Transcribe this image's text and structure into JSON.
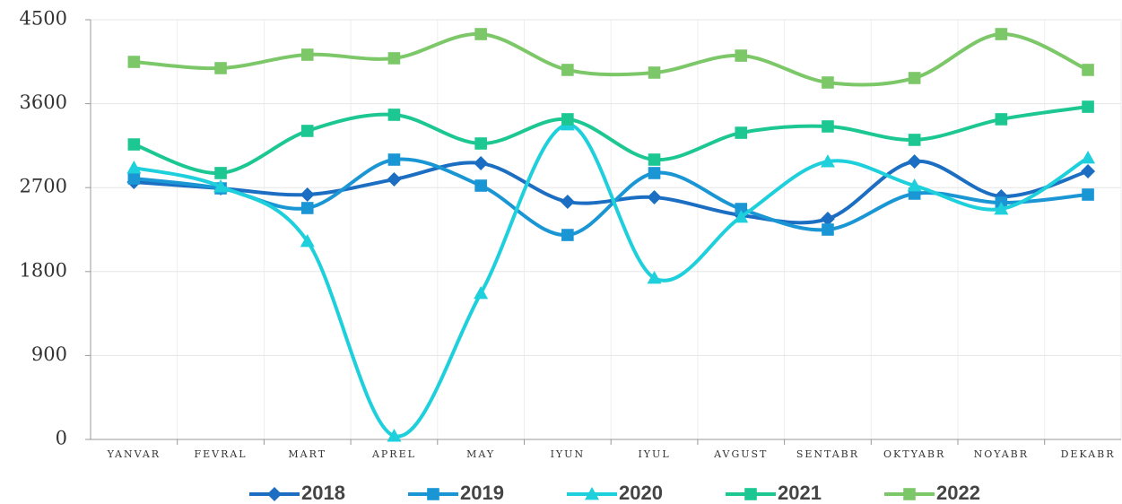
{
  "chart_data": {
    "type": "line",
    "categories": [
      "YANVAR",
      "FEVRAL",
      "MART",
      "APREL",
      "MAY",
      "IYUN",
      "IYUL",
      "AVGUST",
      "SENTABR",
      "OKTYABR",
      "NOYABR",
      "DEKABR"
    ],
    "ylim": [
      0,
      4500
    ],
    "yticks": [
      0,
      900,
      1800,
      2700,
      3600,
      4500
    ],
    "grid": true,
    "smooth": true,
    "legend": "bottom",
    "series": [
      {
        "name": "2018",
        "color": "#1b6ec2",
        "marker": "diamond",
        "values": [
          2760,
          2692,
          2625,
          2788,
          2961,
          2548,
          2596,
          2404,
          2365,
          2980,
          2606,
          2875
        ]
      },
      {
        "name": "2019",
        "color": "#1a96d4",
        "marker": "square",
        "values": [
          2798,
          2692,
          2481,
          3000,
          2721,
          2192,
          2856,
          2471,
          2250,
          2635,
          2538,
          2625
        ]
      },
      {
        "name": "2020",
        "color": "#1ecfdc",
        "marker": "triangle",
        "values": [
          2913,
          2711,
          2125,
          38,
          1567,
          3375,
          1731,
          2385,
          2980,
          2721,
          2471,
          3019
        ]
      },
      {
        "name": "2021",
        "color": "#1cc792",
        "marker": "square",
        "values": [
          3163,
          2856,
          3308,
          3481,
          3173,
          3433,
          3000,
          3288,
          3356,
          3212,
          3433,
          3567
        ]
      },
      {
        "name": "2022",
        "color": "#7cc869",
        "marker": "square",
        "values": [
          4048,
          3981,
          4125,
          4087,
          4346,
          3962,
          3933,
          4115,
          3827,
          3875,
          4346,
          3962
        ]
      }
    ]
  }
}
